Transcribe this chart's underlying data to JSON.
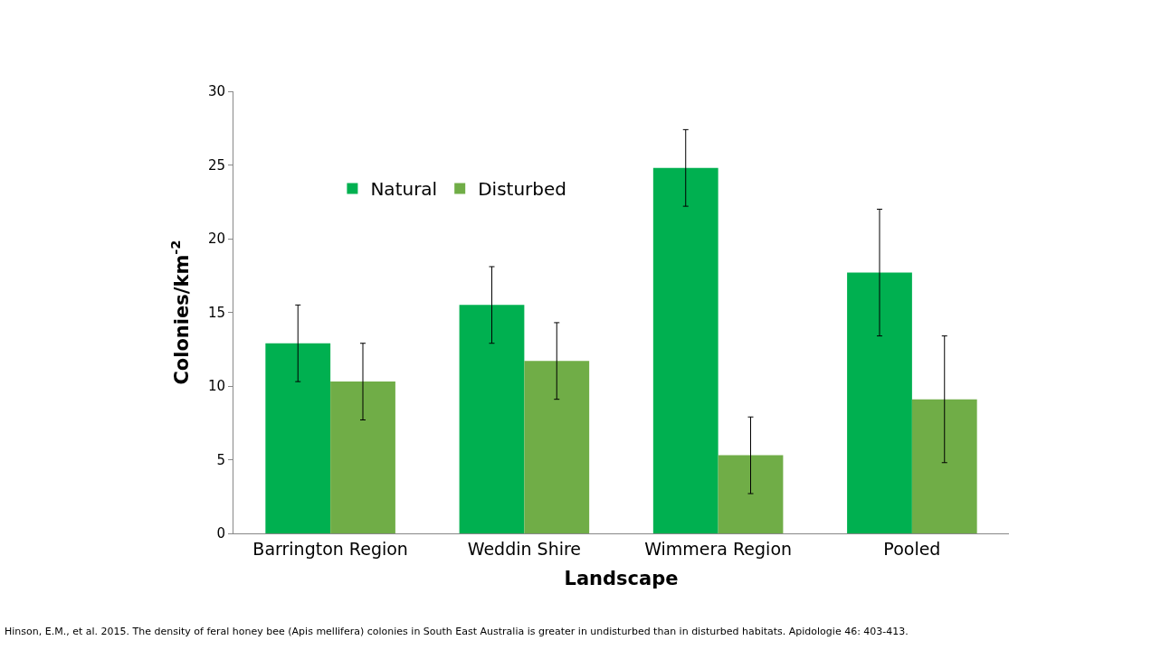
{
  "chart_data": {
    "type": "bar",
    "xlabel": "Landscape",
    "ylabel": "Colonies/km$^{-2}$",
    "categories": [
      "Barrington Region",
      "Weddin Shire",
      "Wimmera Region",
      "Pooled"
    ],
    "series": [
      {
        "name": "Natural",
        "color": "#00b050",
        "values": [
          12.9,
          15.5,
          24.8,
          17.7
        ],
        "errors": [
          2.6,
          2.6,
          2.6,
          4.3
        ]
      },
      {
        "name": "Disturbed",
        "color": "#70ad47",
        "values": [
          10.3,
          11.7,
          5.3,
          9.1
        ],
        "errors": [
          2.6,
          2.6,
          2.6,
          4.3
        ]
      }
    ],
    "ylim": [
      0,
      30
    ],
    "yticks": [
      0,
      5,
      10,
      15,
      20,
      25,
      30
    ],
    "legend": "top left",
    "annotations": [
      "Hinson, E.M., et al. 2015. The density of feral honey bee (Apis mellifera) colonies in South East Australia is greater in undisturbed than in disturbed habitats. Apidologie 46: 403-413."
    ]
  }
}
